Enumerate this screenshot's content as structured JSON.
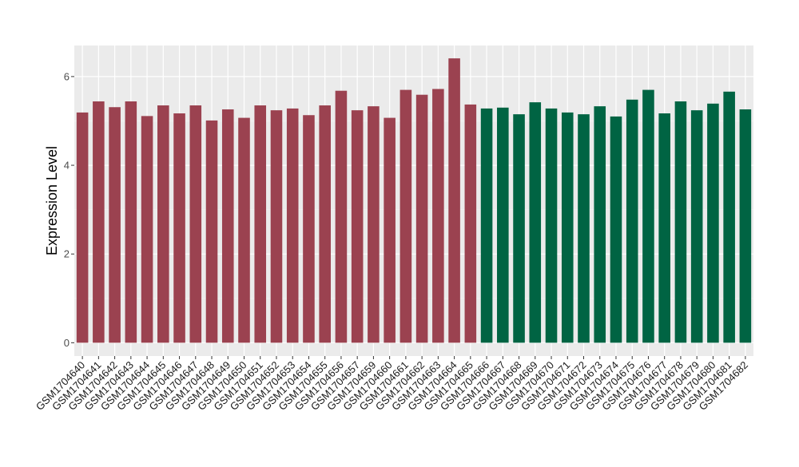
{
  "chart_data": {
    "type": "bar",
    "ylabel": "Expression Level",
    "xlabel": "",
    "ylim": [
      -0.3,
      6.7
    ],
    "yticks": [
      0,
      2,
      4,
      6
    ],
    "grid": true,
    "categories": [
      "GSM1704640",
      "GSM1704641",
      "GSM1704642",
      "GSM1704643",
      "GSM1704644",
      "GSM1704645",
      "GSM1704646",
      "GSM1704647",
      "GSM1704648",
      "GSM1704649",
      "GSM1704650",
      "GSM1704651",
      "GSM1704652",
      "GSM1704653",
      "GSM1704654",
      "GSM1704655",
      "GSM1704656",
      "GSM1704657",
      "GSM1704659",
      "GSM1704660",
      "GSM1704661",
      "GSM1704662",
      "GSM1704663",
      "GSM1704664",
      "GSM1704665",
      "GSM1704666",
      "GSM1704667",
      "GSM1704668",
      "GSM1704669",
      "GSM1704670",
      "GSM1704671",
      "GSM1704672",
      "GSM1704673",
      "GSM1704674",
      "GSM1704675",
      "GSM1704676",
      "GSM1704677",
      "GSM1704678",
      "GSM1704679",
      "GSM1704680",
      "GSM1704681",
      "GSM1704682"
    ],
    "values": [
      5.19,
      5.44,
      5.31,
      5.44,
      5.11,
      5.35,
      5.17,
      5.35,
      5.01,
      5.26,
      5.07,
      5.35,
      5.24,
      5.28,
      5.13,
      5.35,
      5.68,
      5.24,
      5.33,
      5.07,
      5.7,
      5.59,
      5.72,
      6.41,
      5.37,
      5.28,
      5.3,
      5.15,
      5.42,
      5.28,
      5.19,
      5.15,
      5.33,
      5.1,
      5.48,
      5.7,
      5.17,
      5.44,
      5.24,
      5.39,
      5.66,
      5.26
    ],
    "group_sizes": [
      25,
      17
    ],
    "colors": [
      "#9b4250",
      "#006443"
    ]
  }
}
